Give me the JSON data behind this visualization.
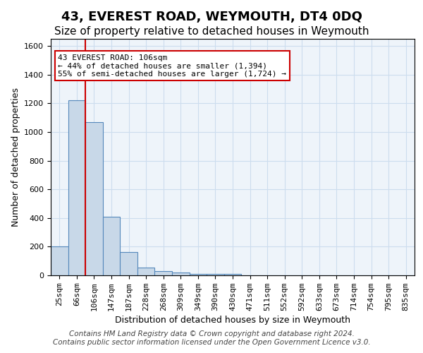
{
  "title": "43, EVEREST ROAD, WEYMOUTH, DT4 0DQ",
  "subtitle": "Size of property relative to detached houses in Weymouth",
  "xlabel": "Distribution of detached houses by size in Weymouth",
  "ylabel": "Number of detached properties",
  "footer_line1": "Contains HM Land Registry data © Crown copyright and database right 2024.",
  "footer_line2": "Contains public sector information licensed under the Open Government Licence v3.0.",
  "bin_labels": [
    "25sqm",
    "66sqm",
    "106sqm",
    "147sqm",
    "187sqm",
    "228sqm",
    "268sqm",
    "309sqm",
    "349sqm",
    "390sqm",
    "430sqm",
    "471sqm",
    "511sqm",
    "552sqm",
    "592sqm",
    "633sqm",
    "673sqm",
    "714sqm",
    "754sqm",
    "795sqm",
    "835sqm"
  ],
  "bar_values": [
    200,
    1220,
    1070,
    410,
    165,
    55,
    30,
    20,
    12,
    12,
    10,
    0,
    0,
    0,
    0,
    0,
    0,
    0,
    0,
    0,
    0
  ],
  "bar_color": "#c8d8e8",
  "bar_edge_color": "#5588bb",
  "red_line_index": 2,
  "ylim": [
    0,
    1650
  ],
  "yticks": [
    0,
    200,
    400,
    600,
    800,
    1000,
    1200,
    1400,
    1600
  ],
  "annotation_text": "43 EVEREST ROAD: 106sqm\n← 44% of detached houses are smaller (1,394)\n55% of semi-detached houses are larger (1,724) →",
  "annotation_box_color": "#ffffff",
  "annotation_border_color": "#cc0000",
  "grid_color": "#ccddee",
  "bg_color": "#eef4fa",
  "title_fontsize": 13,
  "subtitle_fontsize": 11,
  "label_fontsize": 9,
  "tick_fontsize": 8,
  "footer_fontsize": 7.5
}
